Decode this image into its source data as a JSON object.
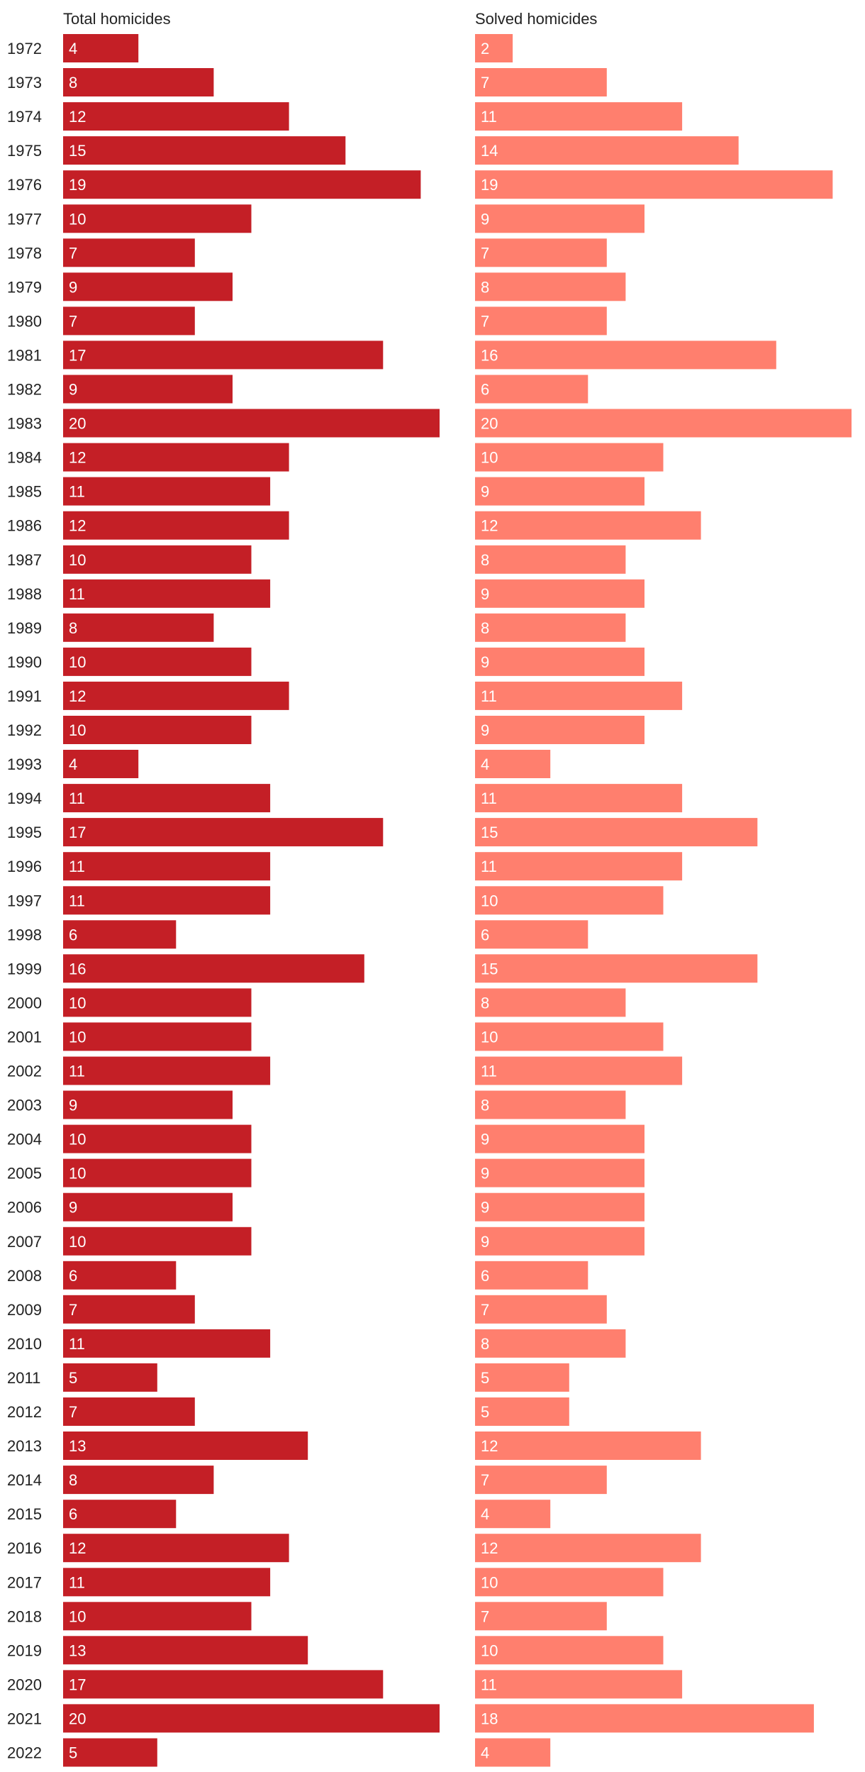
{
  "chart_data": {
    "type": "bar",
    "title": "",
    "orientation": "horizontal",
    "layout": "side-by-side panels",
    "categories": [
      "1972",
      "1973",
      "1974",
      "1975",
      "1976",
      "1977",
      "1978",
      "1979",
      "1980",
      "1981",
      "1982",
      "1983",
      "1984",
      "1985",
      "1986",
      "1987",
      "1988",
      "1989",
      "1990",
      "1991",
      "1992",
      "1993",
      "1994",
      "1995",
      "1996",
      "1997",
      "1998",
      "1999",
      "2000",
      "2001",
      "2002",
      "2003",
      "2004",
      "2005",
      "2006",
      "2007",
      "2008",
      "2009",
      "2010",
      "2011",
      "2012",
      "2013",
      "2014",
      "2015",
      "2016",
      "2017",
      "2018",
      "2019",
      "2020",
      "2021",
      "2022"
    ],
    "series": [
      {
        "name": "Total homicides",
        "color": "#c41f26",
        "values": [
          4,
          8,
          12,
          15,
          19,
          10,
          7,
          9,
          7,
          17,
          9,
          20,
          12,
          11,
          12,
          10,
          11,
          8,
          10,
          12,
          10,
          4,
          11,
          17,
          11,
          11,
          6,
          16,
          10,
          10,
          11,
          9,
          10,
          10,
          9,
          10,
          6,
          7,
          11,
          5,
          7,
          13,
          8,
          6,
          12,
          11,
          10,
          13,
          17,
          20,
          5
        ]
      },
      {
        "name": "Solved homicides",
        "color": "#ff7f6e",
        "values": [
          2,
          7,
          11,
          14,
          19,
          9,
          7,
          8,
          7,
          16,
          6,
          20,
          10,
          9,
          12,
          8,
          9,
          8,
          9,
          11,
          9,
          4,
          11,
          15,
          11,
          10,
          6,
          15,
          8,
          10,
          11,
          8,
          9,
          9,
          9,
          9,
          6,
          7,
          8,
          5,
          5,
          12,
          7,
          4,
          12,
          10,
          7,
          10,
          11,
          18,
          4
        ]
      }
    ],
    "xlim": [
      0,
      20
    ],
    "grid": false,
    "legend": "panel headers at top"
  }
}
